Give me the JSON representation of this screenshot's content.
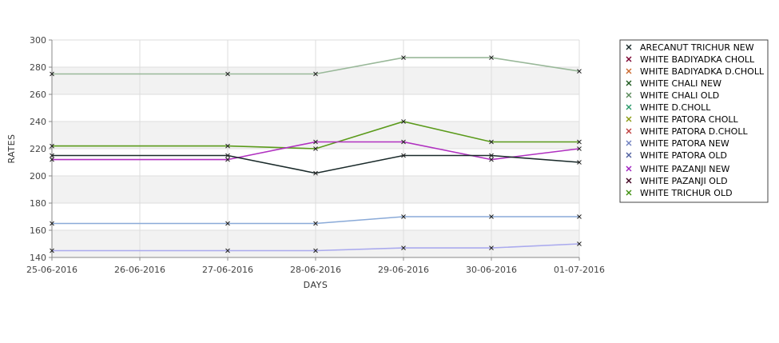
{
  "chart_data": {
    "type": "line",
    "title": "",
    "xlabel": "DAYS",
    "ylabel": "RATES",
    "ylim": [
      140,
      300
    ],
    "yticks": [
      140,
      160,
      180,
      200,
      220,
      240,
      260,
      280,
      300
    ],
    "categories": [
      "25-06-2016",
      "26-06-2016",
      "27-06-2016",
      "28-06-2016",
      "29-06-2016",
      "30-06-2016",
      "01-07-2016"
    ],
    "grid": true,
    "legend_position": "right",
    "series": [
      {
        "name": "ARECANUT TRICHUR NEW",
        "color": "#1a2a2a",
        "values": [
          null,
          null,
          null,
          null,
          null,
          null,
          null
        ]
      },
      {
        "name": "WHITE BADIYADKA CHOLL",
        "color": "#7a0030",
        "values": [
          null,
          null,
          null,
          null,
          null,
          null,
          null
        ]
      },
      {
        "name": "WHITE BADIYADKA D.CHOLL",
        "color": "#cc6a30",
        "values": [
          null,
          null,
          null,
          null,
          null,
          null,
          null
        ]
      },
      {
        "name": "WHITE CHALI NEW",
        "color": "#1f5a1f",
        "values": [
          null,
          null,
          null,
          null,
          null,
          null,
          null
        ]
      },
      {
        "name": "WHITE CHALI OLD",
        "color": "#5a8a5a",
        "values": [
          null,
          null,
          null,
          null,
          null,
          null,
          null
        ]
      },
      {
        "name": "WHITE D.CHOLL",
        "color": "#2a9a6a",
        "values": [
          null,
          null,
          null,
          null,
          null,
          null,
          null
        ]
      },
      {
        "name": "WHITE PATORA CHOLL",
        "color": "#8a9a10",
        "values": [
          null,
          null,
          null,
          null,
          null,
          null,
          null
        ]
      },
      {
        "name": "WHITE PATORA D.CHOLL",
        "color": "#c04040",
        "values": [
          null,
          null,
          null,
          null,
          null,
          null,
          null
        ]
      },
      {
        "name": "WHITE PATORA NEW",
        "color": "#7080c0",
        "values": [
          null,
          null,
          null,
          null,
          null,
          null,
          null
        ]
      },
      {
        "name": "WHITE PATORA OLD",
        "color": "#5060a0",
        "values": [
          null,
          null,
          null,
          null,
          null,
          null,
          null
        ]
      },
      {
        "name": "WHITE PAZANJI NEW",
        "color": "#a020c0",
        "values": [
          null,
          null,
          null,
          null,
          null,
          null,
          null
        ]
      },
      {
        "name": "WHITE PAZANJI OLD",
        "color": "#400020",
        "values": [
          null,
          null,
          null,
          null,
          null,
          null,
          null
        ]
      },
      {
        "name": "WHITE TRICHUR OLD",
        "color": "#409010",
        "values": [
          null,
          null,
          null,
          null,
          null,
          null,
          null
        ]
      }
    ],
    "lines": [
      {
        "color": "#99b899",
        "values": [
          275,
          null,
          275,
          275,
          287,
          287,
          277
        ]
      },
      {
        "color": "#5a9a1a",
        "values": [
          222,
          null,
          222,
          220,
          240,
          225,
          225
        ]
      },
      {
        "color": "#b030c0",
        "values": [
          212,
          null,
          212,
          225,
          225,
          212,
          220
        ]
      },
      {
        "color": "#1a2a2a",
        "values": [
          215,
          null,
          215,
          202,
          215,
          215,
          210
        ]
      },
      {
        "color": "#8aaad8",
        "values": [
          165,
          null,
          165,
          165,
          170,
          170,
          170
        ]
      },
      {
        "color": "#aaaaee",
        "values": [
          145,
          null,
          145,
          145,
          147,
          147,
          150
        ]
      }
    ]
  }
}
